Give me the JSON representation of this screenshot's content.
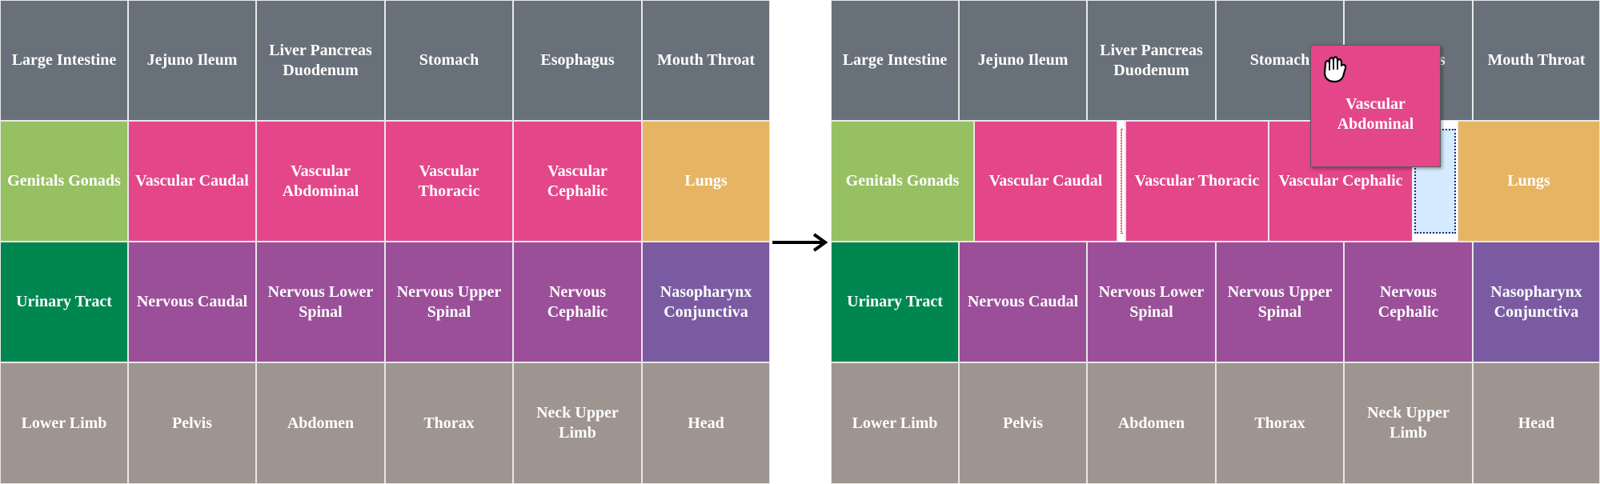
{
  "colors": {
    "organ_gray": "#687079",
    "genital_green": "#97c063",
    "vascular_pink": "#e4468a",
    "lungs_orange": "#e6b563",
    "urinary_teal": "#008750",
    "nervous_purple": "#9b4f99",
    "naso_violet": "#7a5ba2",
    "region_taupe": "#9e9490"
  },
  "before": {
    "row1": [
      "Large Intestine",
      "Jejuno Ileum",
      "Liver Pancreas Duodenum",
      "Stomach",
      "Esophagus",
      "Mouth Throat"
    ],
    "row2": [
      "Genitals Gonads",
      "Vascular Caudal",
      "Vascular Abdominal",
      "Vascular Thoracic",
      "Vascular Cephalic",
      "Lungs"
    ],
    "row3": [
      "Urinary Tract",
      "Nervous Caudal",
      "Nervous Lower Spinal",
      "Nervous Upper Spinal",
      "Nervous Cephalic",
      "Nasopharynx Conjunctiva"
    ],
    "row4": [
      "Lower Limb",
      "Pelvis",
      "Abdomen",
      "Thorax",
      "Neck Upper Limb",
      "Head"
    ]
  },
  "after": {
    "row1": [
      "Large Intestine",
      "Jejuno Ileum",
      "Liver Pancreas Duodenum",
      "Stomach",
      "Esophagus",
      "Mouth Throat"
    ],
    "row2": [
      "Genitals Gonads",
      "Vascular Caudal",
      "Vascular Thoracic",
      "Vascular Cephalic",
      "Lungs"
    ],
    "row3": [
      "Urinary Tract",
      "Nervous Caudal",
      "Nervous Lower Spinal",
      "Nervous Upper Spinal",
      "Nervous Cephalic",
      "Nasopharynx Conjunctiva"
    ],
    "row4": [
      "Lower Limb",
      "Pelvis",
      "Abdomen",
      "Thorax",
      "Neck Upper Limb",
      "Head"
    ],
    "dragged_tile": "Vascular Abdominal"
  },
  "arrow_icon": "right-arrow-icon",
  "cursor_icon": "grab-hand-icon"
}
